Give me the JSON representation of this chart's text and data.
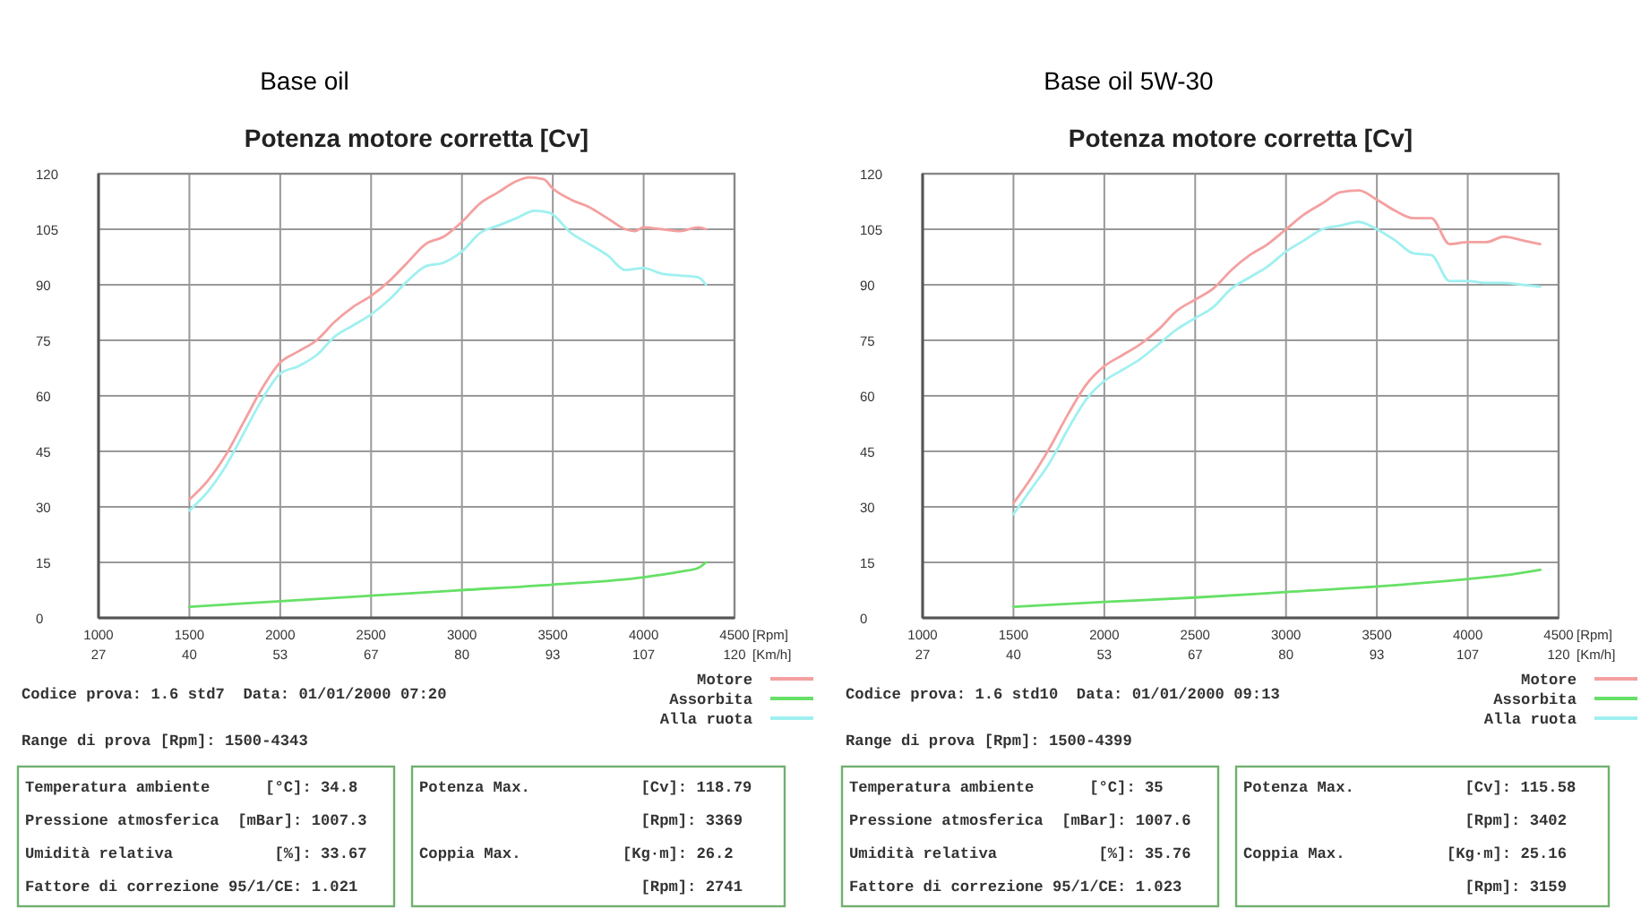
{
  "chart_data": [
    {
      "type": "line",
      "subtitle": "Base oil",
      "title": "Potenza motore corretta [Cv]",
      "xlabel": "[Rpm]",
      "x2label": "[Km/h]",
      "xlim": [
        1000,
        4500
      ],
      "xticks": [
        1000,
        1500,
        2000,
        2500,
        3000,
        3500,
        4000,
        4500
      ],
      "x2lim": [
        26.67,
        120
      ],
      "x2ticks": [
        {
          "value": 26.67,
          "label": "27"
        },
        {
          "value": 40,
          "label": "40"
        },
        {
          "value": 53.33,
          "label": "53"
        },
        {
          "value": 66.67,
          "label": "67"
        },
        {
          "value": 80,
          "label": "80"
        },
        {
          "value": 93.33,
          "label": "93"
        },
        {
          "value": 106.67,
          "label": "107"
        },
        {
          "value": 120,
          "label": "120"
        }
      ],
      "ylim": [
        0,
        120
      ],
      "yticks": [
        0,
        15,
        30,
        45,
        60,
        75,
        90,
        105,
        120
      ],
      "grid": true,
      "legend": "bottom right",
      "series": [
        {
          "name": "Motore",
          "color": "#f4a0a0",
          "x": [
            1500,
            1600,
            1700,
            1800,
            1900,
            2000,
            2100,
            2200,
            2300,
            2400,
            2500,
            2600,
            2700,
            2800,
            2900,
            3000,
            3100,
            3200,
            3300,
            3370,
            3450,
            3500,
            3600,
            3700,
            3800,
            3900,
            3950,
            4000,
            4100,
            4200,
            4300,
            4343
          ],
          "values": [
            32,
            37,
            44,
            53,
            62,
            69,
            72,
            75,
            80,
            84,
            87,
            91,
            96,
            101,
            103,
            107,
            112,
            115,
            118,
            119,
            118.5,
            116,
            113,
            111,
            108,
            105,
            104.5,
            105.5,
            105,
            104.5,
            105.5,
            105
          ]
        },
        {
          "name": "Assorbita",
          "color": "#66e066",
          "x": [
            1500,
            2000,
            2500,
            3000,
            3500,
            4000,
            4200,
            4300,
            4343
          ],
          "values": [
            3,
            4.5,
            6,
            7.5,
            9,
            11,
            12.5,
            13.5,
            15
          ]
        },
        {
          "name": "Alla ruota",
          "color": "#a0f0f0",
          "x": [
            1500,
            1600,
            1700,
            1800,
            1900,
            2000,
            2100,
            2200,
            2300,
            2400,
            2500,
            2600,
            2700,
            2800,
            2900,
            3000,
            3100,
            3200,
            3300,
            3400,
            3480,
            3600,
            3700,
            3800,
            3900,
            4000,
            4100,
            4200,
            4300,
            4343
          ],
          "values": [
            29,
            34,
            41,
            50,
            59,
            66,
            68,
            71,
            76,
            79,
            82,
            86,
            91,
            95,
            96,
            99,
            104,
            106,
            108,
            110,
            109.5,
            104,
            101,
            98,
            94,
            94.5,
            93,
            92.5,
            92,
            90
          ]
        }
      ],
      "annotations": [
        "Codice prova: 1.6 std7  Data: 01/01/2000 07:20",
        "Range di prova [Rpm]: 1500-4343",
        "Temperatura ambiente      [°C]: 34.8",
        "Pressione atmosferica  [mBar]: 1007.3",
        "Umidità relativa           [%]: 33.67",
        "Fattore di correzione 95/1/CE: 1.021",
        "Potenza Max.            [Cv]: 118.79",
        "                        [Rpm]: 3369",
        "Coppia Max.           [Kg·m]: 26.2",
        "                        [Rpm]: 2741"
      ]
    },
    {
      "type": "line",
      "subtitle": "Base oil 5W-30",
      "title": "Potenza motore corretta [Cv]",
      "xlabel": "[Rpm]",
      "x2label": "[Km/h]",
      "xlim": [
        1000,
        4500
      ],
      "xticks": [
        1000,
        1500,
        2000,
        2500,
        3000,
        3500,
        4000,
        4500
      ],
      "x2lim": [
        26.67,
        120
      ],
      "x2ticks": [
        {
          "value": 26.67,
          "label": "27"
        },
        {
          "value": 40,
          "label": "40"
        },
        {
          "value": 53.33,
          "label": "53"
        },
        {
          "value": 66.67,
          "label": "67"
        },
        {
          "value": 80,
          "label": "80"
        },
        {
          "value": 93.33,
          "label": "93"
        },
        {
          "value": 106.67,
          "label": "107"
        },
        {
          "value": 120,
          "label": "120"
        }
      ],
      "ylim": [
        0,
        120
      ],
      "yticks": [
        0,
        15,
        30,
        45,
        60,
        75,
        90,
        105,
        120
      ],
      "grid": true,
      "legend": "bottom right",
      "series": [
        {
          "name": "Motore",
          "color": "#f4a0a0",
          "x": [
            1500,
            1600,
            1700,
            1800,
            1900,
            2000,
            2100,
            2200,
            2300,
            2400,
            2500,
            2600,
            2700,
            2800,
            2900,
            3000,
            3100,
            3200,
            3300,
            3400,
            3500,
            3600,
            3700,
            3800,
            3900,
            4000,
            4100,
            4200,
            4300,
            4399
          ],
          "values": [
            31,
            38,
            46,
            55,
            63,
            68,
            71,
            74,
            78,
            83,
            86,
            89,
            94,
            98,
            101,
            105,
            109,
            112,
            115,
            115.5,
            113,
            110,
            108,
            108,
            101,
            101.5,
            101.5,
            103,
            102,
            101
          ]
        },
        {
          "name": "Assorbita",
          "color": "#66e066",
          "x": [
            1500,
            2000,
            2500,
            3000,
            3500,
            4000,
            4200,
            4399
          ],
          "values": [
            3,
            4.3,
            5.5,
            7,
            8.5,
            10.5,
            11.5,
            13
          ]
        },
        {
          "name": "Alla ruota",
          "color": "#a0f0f0",
          "x": [
            1500,
            1600,
            1700,
            1800,
            1900,
            2000,
            2100,
            2200,
            2300,
            2400,
            2500,
            2600,
            2700,
            2800,
            2900,
            3000,
            3100,
            3200,
            3300,
            3400,
            3500,
            3600,
            3700,
            3800,
            3900,
            4000,
            4100,
            4200,
            4300,
            4399
          ],
          "values": [
            28,
            35,
            42,
            51,
            59,
            64,
            67,
            70,
            74,
            78,
            81,
            84,
            89,
            92,
            95,
            99,
            102,
            105,
            106,
            107,
            105,
            102,
            98.5,
            98,
            91,
            91,
            90.5,
            90.5,
            90,
            89.5
          ]
        }
      ],
      "annotations": [
        "Codice prova: 1.6 std10  Data: 01/01/2000 09:13",
        "Range di prova [Rpm]: 1500-4399",
        "Temperatura ambiente      [°C]: 35",
        "Pressione atmosferica  [mBar]: 1007.6",
        "Umidità relativa           [%]: 35.76",
        "Fattore di correzione 95/1/CE: 1.023",
        "Potenza Max.            [Cv]: 115.58",
        "                        [Rpm]: 3402",
        "Coppia Max.           [Kg·m]: 25.16",
        "                        [Rpm]: 3159"
      ]
    }
  ]
}
